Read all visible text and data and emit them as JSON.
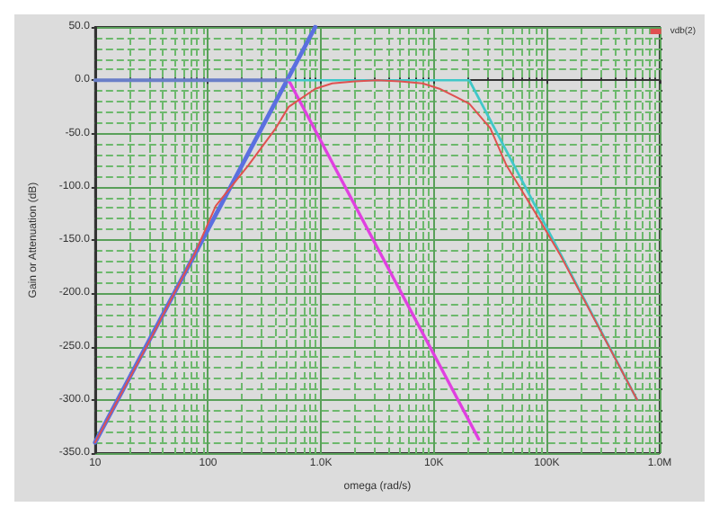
{
  "chart_data": {
    "type": "line",
    "xlabel": "omega (rad/s)",
    "ylabel": "Gain or Attenuation (dB)",
    "log": "x",
    "grid": true,
    "legend": "top right",
    "marker": "none",
    "line_style": "solid",
    "xlim": [
      10,
      1000000
    ],
    "xticks": [
      {
        "value": 20,
        "label": null
      },
      {
        "value": 30,
        "label": null
      },
      {
        "value": 40,
        "label": null
      },
      {
        "value": 50,
        "label": null
      },
      {
        "value": 60,
        "label": null
      },
      {
        "value": 70,
        "label": null
      },
      {
        "value": 80,
        "label": null
      },
      {
        "value": 90,
        "label": null
      },
      {
        "value": 200,
        "label": null
      },
      {
        "value": 300,
        "label": null
      },
      {
        "value": 400,
        "label": null
      },
      {
        "value": 500,
        "label": null
      },
      {
        "value": 600,
        "label": null
      },
      {
        "value": 700,
        "label": null
      },
      {
        "value": 800,
        "label": null
      },
      {
        "value": 900,
        "label": null
      },
      {
        "value": 2000,
        "label": null
      },
      {
        "value": 3000,
        "label": null
      },
      {
        "value": 4000,
        "label": null
      },
      {
        "value": 5000,
        "label": null
      },
      {
        "value": 6000,
        "label": null
      },
      {
        "value": 7000,
        "label": null
      },
      {
        "value": 8000,
        "label": null
      },
      {
        "value": 9000,
        "label": null
      },
      {
        "value": 20000,
        "label": null
      },
      {
        "value": 30000,
        "label": null
      },
      {
        "value": 40000,
        "label": null
      },
      {
        "value": 50000,
        "label": null
      },
      {
        "value": 60000,
        "label": null
      },
      {
        "value": 70000,
        "label": null
      },
      {
        "value": 80000,
        "label": null
      },
      {
        "value": 90000,
        "label": null
      },
      {
        "value": 200000,
        "label": null
      },
      {
        "value": 300000,
        "label": null
      },
      {
        "value": 400000,
        "label": null
      },
      {
        "value": 500000,
        "label": null
      },
      {
        "value": 600000,
        "label": null
      },
      {
        "value": 700000,
        "label": null
      },
      {
        "value": 800000,
        "label": null
      },
      {
        "value": 900000,
        "label": null
      },
      {
        "value": 10,
        "label": "10"
      },
      {
        "value": 100,
        "label": "100"
      },
      {
        "value": 1000,
        "label": "1.0K"
      },
      {
        "value": 10000,
        "label": "10K"
      },
      {
        "value": 100000,
        "label": "100K"
      },
      {
        "value": 1000000,
        "label": "1.0M"
      }
    ],
    "ylim": [
      -350,
      50
    ],
    "yticks": [
      {
        "value": -340,
        "label": null
      },
      {
        "value": -330,
        "label": null
      },
      {
        "value": -320,
        "label": null
      },
      {
        "value": -310,
        "label": null
      },
      {
        "value": -290,
        "label": null
      },
      {
        "value": -280,
        "label": null
      },
      {
        "value": -270,
        "label": null
      },
      {
        "value": -260,
        "label": null
      },
      {
        "value": -240,
        "label": null
      },
      {
        "value": -230,
        "label": null
      },
      {
        "value": -220,
        "label": null
      },
      {
        "value": -210,
        "label": null
      },
      {
        "value": -190,
        "label": null
      },
      {
        "value": -180,
        "label": null
      },
      {
        "value": -170,
        "label": null
      },
      {
        "value": -160,
        "label": null
      },
      {
        "value": -140,
        "label": null
      },
      {
        "value": -130,
        "label": null
      },
      {
        "value": -120,
        "label": null
      },
      {
        "value": -110,
        "label": null
      },
      {
        "value": -90,
        "label": null
      },
      {
        "value": -80,
        "label": null
      },
      {
        "value": -70,
        "label": null
      },
      {
        "value": -60,
        "label": null
      },
      {
        "value": -40,
        "label": null
      },
      {
        "value": -30,
        "label": null
      },
      {
        "value": -20,
        "label": null
      },
      {
        "value": -10,
        "label": null
      },
      {
        "value": 10,
        "label": null
      },
      {
        "value": 20,
        "label": null
      },
      {
        "value": 30,
        "label": null
      },
      {
        "value": 40,
        "label": null
      },
      {
        "value": -350,
        "label": "-350.0"
      },
      {
        "value": -300,
        "label": "-300.0"
      },
      {
        "value": -250,
        "label": "-250.0"
      },
      {
        "value": -200,
        "label": "-200.0"
      },
      {
        "value": -150,
        "label": "-150.0"
      },
      {
        "value": -100,
        "label": "-100.0"
      },
      {
        "value": -50,
        "label": "-50.0"
      },
      {
        "value": 0,
        "label": "0.0"
      },
      {
        "value": 50,
        "label": "50.0"
      }
    ],
    "series": [
      {
        "color": "#5b6fe0",
        "x": [
          10,
          891
        ],
        "values": [
          -340,
          50
        ]
      },
      {
        "color": "#6a7fc8",
        "x": [
          10,
          518
        ],
        "values": [
          0,
          0
        ]
      },
      {
        "color": "#e040e0",
        "x": [
          518,
          25000
        ],
        "values": [
          0,
          -337
        ]
      },
      {
        "color": "#40c8c8",
        "x": [
          518,
          20600,
          631000
        ],
        "values": [
          0,
          0,
          -300
        ]
      },
      {
        "name": "vdb(2)",
        "color": "#e05050",
        "x": [
          10,
          32,
          77,
          117,
          227,
          398,
          518,
          891,
          1259,
          1995,
          3162,
          5012,
          7943,
          11220,
          20600,
          31600,
          44000,
          85100,
          130000,
          316000,
          631000
        ],
        "values": [
          -340,
          -240,
          -162,
          -118,
          -80,
          -45,
          -25,
          -8,
          -3,
          -1,
          0,
          -1,
          -3,
          -8,
          -22,
          -45,
          -80,
          -130,
          -163,
          -240,
          -300
        ]
      }
    ]
  }
}
